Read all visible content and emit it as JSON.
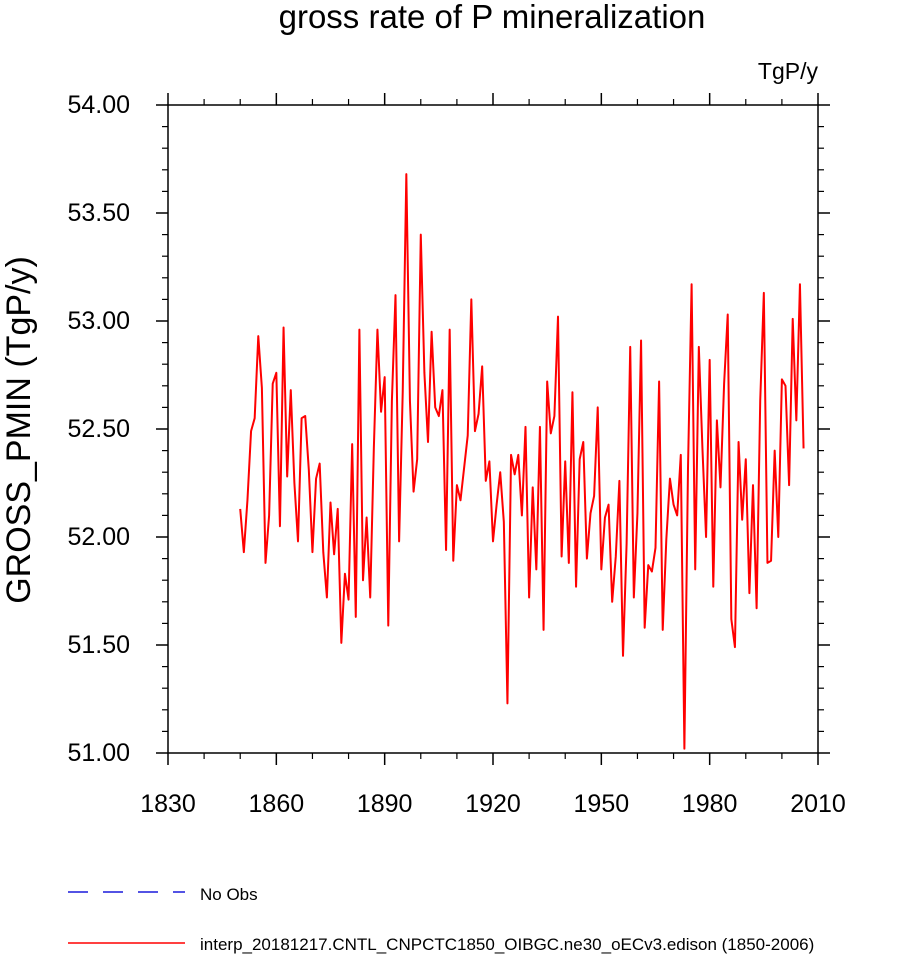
{
  "chart_data": {
    "type": "line",
    "title": "gross rate of P mineralization",
    "units": "TgP/y",
    "xlabel": "",
    "ylabel": "GROSS_PMIN  (TgP/y)",
    "xlim": [
      1830,
      2010
    ],
    "ylim": [
      51.0,
      54.0
    ],
    "x_ticks": [
      1830,
      1860,
      1890,
      1920,
      1950,
      1980,
      2010
    ],
    "x_tick_labels": [
      "1830",
      "1860",
      "1890",
      "1920",
      "1950",
      "1980",
      "2010"
    ],
    "y_ticks": [
      51.0,
      51.5,
      52.0,
      52.5,
      53.0,
      53.5,
      54.0
    ],
    "y_tick_labels": [
      "51.00",
      "51.50",
      "52.00",
      "52.50",
      "53.00",
      "53.50",
      "54.00"
    ],
    "grid": false,
    "legend": [
      {
        "label": "No Obs",
        "color": "#1a1adb",
        "style": "dashed"
      },
      {
        "label": "interp_20181217.CNTL_CNPCTC1850_OIBGC.ne30_oECv3.edison (1850-2006)",
        "color": "#ff0000",
        "style": "solid"
      }
    ],
    "series": [
      {
        "name": "interp_20181217.CNTL_CNPCTC1850_OIBGC.ne30_oECv3.edison (1850-2006)",
        "color": "#ff0000",
        "x_start": 1850,
        "x_step": 1,
        "values": [
          52.13,
          51.93,
          52.17,
          52.49,
          52.55,
          52.93,
          52.69,
          51.88,
          52.1,
          52.71,
          52.76,
          52.05,
          52.97,
          52.28,
          52.68,
          52.25,
          51.98,
          52.55,
          52.56,
          52.31,
          51.93,
          52.27,
          52.34,
          51.93,
          51.72,
          52.16,
          51.92,
          52.13,
          51.51,
          51.83,
          51.71,
          52.43,
          51.63,
          52.96,
          51.8,
          52.09,
          51.72,
          52.41,
          52.96,
          52.58,
          52.74,
          51.59,
          52.63,
          53.12,
          51.98,
          52.67,
          53.68,
          52.63,
          52.21,
          52.36,
          53.4,
          52.76,
          52.44,
          52.95,
          52.6,
          52.56,
          52.68,
          51.94,
          52.96,
          51.89,
          52.24,
          52.17,
          52.32,
          52.47,
          53.1,
          52.49,
          52.57,
          52.79,
          52.26,
          52.35,
          51.98,
          52.15,
          52.3,
          52.07,
          51.23,
          52.38,
          52.29,
          52.38,
          52.1,
          52.51,
          51.72,
          52.23,
          51.85,
          52.51,
          51.57,
          52.72,
          52.48,
          52.56,
          53.02,
          51.91,
          52.35,
          51.88,
          52.67,
          51.77,
          52.36,
          52.44,
          51.9,
          52.11,
          52.19,
          52.6,
          51.85,
          52.09,
          52.15,
          51.7,
          51.91,
          52.26,
          51.45,
          51.97,
          52.88,
          51.72,
          52.11,
          52.91,
          51.58,
          51.87,
          51.84,
          51.95,
          52.72,
          51.57,
          51.99,
          52.27,
          52.15,
          52.1,
          52.38,
          51.02,
          52.32,
          53.17,
          51.85,
          52.88,
          52.41,
          52.0,
          52.82,
          51.77,
          52.54,
          52.23,
          52.71,
          53.03,
          51.62,
          51.49,
          52.44,
          52.08,
          52.36,
          51.74,
          52.24,
          51.67,
          52.63,
          53.13,
          51.88,
          51.89,
          52.4,
          52.0,
          52.73,
          52.7,
          52.24,
          53.01,
          52.54,
          53.17,
          52.41
        ]
      }
    ]
  }
}
